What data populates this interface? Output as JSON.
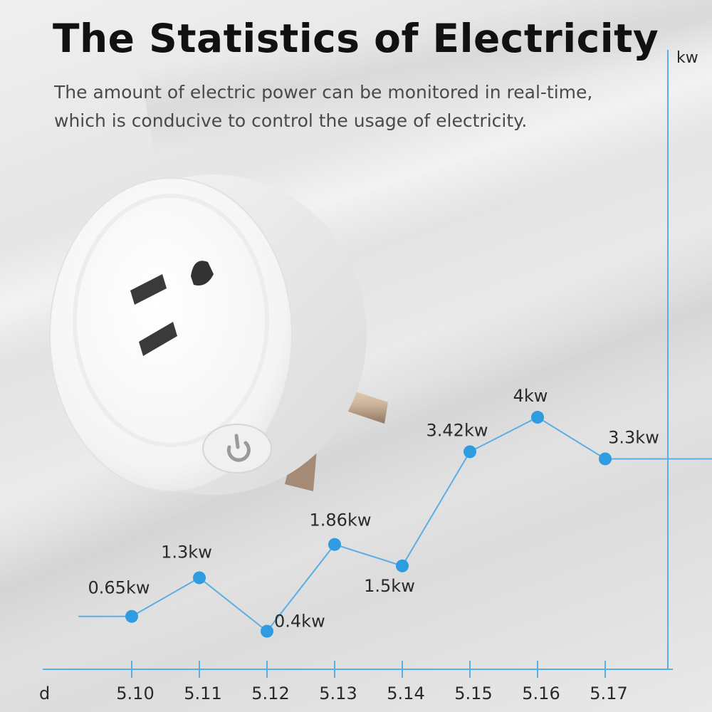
{
  "header": {
    "title": "The Statistics of Electricity",
    "subtitle_line1": "The amount of electric power can be monitored in real-time,",
    "subtitle_line2": "which is conducive to control the usage of electricity."
  },
  "chart_data": {
    "type": "line",
    "title": "",
    "xlabel": "d",
    "ylabel": "kw",
    "categories": [
      "5.10",
      "5.11",
      "5.12",
      "5.13",
      "5.14",
      "5.15",
      "5.16",
      "5.17"
    ],
    "series": [
      {
        "values": [
          0.65,
          1.3,
          0.4,
          1.86,
          1.5,
          3.42,
          4,
          3.3
        ],
        "labels": [
          "0.65kw",
          "1.3kw",
          "0.4kw",
          "1.86kw",
          "1.5kw",
          "3.42kw",
          "4kw",
          "3.3kw"
        ]
      }
    ],
    "ylim": [
      0,
      4.6
    ],
    "grid": false,
    "colors": {
      "line": "#5aaee6",
      "marker": "#2f9be0",
      "axis": "#5aaee6",
      "text": "#2a2a2a"
    }
  }
}
